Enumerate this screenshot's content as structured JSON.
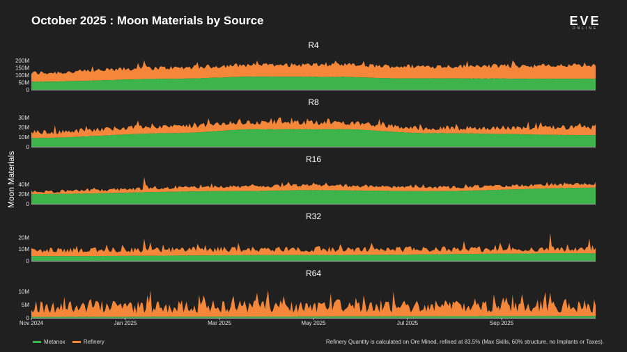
{
  "title": "October 2025 : Moon Materials by Source",
  "logo": {
    "main": "EVE",
    "sub": "ONLINE"
  },
  "colors": {
    "background": "#202020",
    "metanox": "#3cb44b",
    "refinery": "#f5873a"
  },
  "footnote": "Refinery Quantity is calculated on Ore Mined, refined at 83.5% (Max Skills, 60% structure, no Implants or Taxes).",
  "legend": [
    {
      "label": "Metanox",
      "color": "#3cb44b"
    },
    {
      "label": "Refinery",
      "color": "#f5873a"
    }
  ],
  "chart_data": {
    "type": "area",
    "stacked": true,
    "ylabel": "Moon Materials",
    "x_range": [
      "2024-11-01",
      "2025-10-31"
    ],
    "x_ticks": [
      "Nov 2024",
      "Jan 2025",
      "Mar 2025",
      "May 2025",
      "Jul 2025",
      "Sep 2025"
    ],
    "series_names": [
      "Metanox",
      "Refinery"
    ],
    "legend_position": "bottom-left",
    "panels": [
      {
        "title": "R4",
        "ylim": [
          0,
          200000000
        ],
        "ytick_labels": [
          "200M",
          "150M",
          "100M",
          "50M",
          "0"
        ],
        "ytick_values": [
          200000000,
          150000000,
          100000000,
          50000000,
          0
        ],
        "metanox_keyframes": [
          [
            0,
            55000000
          ],
          [
            0.25,
            75000000
          ],
          [
            0.4,
            90000000
          ],
          [
            0.55,
            88000000
          ],
          [
            0.65,
            78000000
          ],
          [
            1.0,
            75000000
          ]
        ],
        "total_keyframes": [
          [
            0,
            115000000
          ],
          [
            0.25,
            150000000
          ],
          [
            0.4,
            170000000
          ],
          [
            0.55,
            170000000
          ],
          [
            0.65,
            160000000
          ],
          [
            1.0,
            165000000
          ]
        ],
        "noise": 15000000,
        "spikes": [
          [
            0.2,
            210000000
          ],
          [
            0.96,
            180000000
          ]
        ]
      },
      {
        "title": "R8",
        "ylim": [
          0,
          30000000
        ],
        "ytick_labels": [
          "30M",
          "20M",
          "10M",
          "0"
        ],
        "ytick_values": [
          30000000,
          20000000,
          10000000,
          0
        ],
        "metanox_keyframes": [
          [
            0,
            9000000
          ],
          [
            0.25,
            14000000
          ],
          [
            0.4,
            18000000
          ],
          [
            0.55,
            18000000
          ],
          [
            0.7,
            14000000
          ],
          [
            1.0,
            12000000
          ]
        ],
        "total_keyframes": [
          [
            0,
            15000000
          ],
          [
            0.25,
            21000000
          ],
          [
            0.4,
            25000000
          ],
          [
            0.55,
            25000000
          ],
          [
            0.7,
            19000000
          ],
          [
            1.0,
            20000000
          ]
        ],
        "noise": 2500000,
        "spikes": [
          [
            0.37,
            29000000
          ],
          [
            0.88,
            26000000
          ]
        ]
      },
      {
        "title": "R16",
        "ylim": [
          0,
          60000000
        ],
        "ytick_labels": [
          "40M",
          "20M",
          "0"
        ],
        "ytick_values": [
          40000000,
          20000000,
          0
        ],
        "metanox_keyframes": [
          [
            0,
            20000000
          ],
          [
            0.35,
            26000000
          ],
          [
            0.5,
            28000000
          ],
          [
            0.7,
            26000000
          ],
          [
            1.0,
            33000000
          ]
        ],
        "total_keyframes": [
          [
            0,
            25000000
          ],
          [
            0.35,
            35000000
          ],
          [
            0.5,
            38000000
          ],
          [
            0.7,
            34000000
          ],
          [
            1.0,
            40000000
          ]
        ],
        "noise": 3000000,
        "spikes": [
          [
            0.2,
            55000000
          ],
          [
            0.98,
            43000000
          ]
        ]
      },
      {
        "title": "R32",
        "ylim": [
          0,
          25000000
        ],
        "ytick_labels": [
          "20M",
          "10M",
          "0"
        ],
        "ytick_values": [
          20000000,
          10000000,
          0
        ],
        "metanox_keyframes": [
          [
            0,
            4000000
          ],
          [
            0.5,
            5000000
          ],
          [
            1.0,
            6500000
          ]
        ],
        "total_keyframes": [
          [
            0,
            9000000
          ],
          [
            0.5,
            10000000
          ],
          [
            1.0,
            10000000
          ]
        ],
        "noise": 2500000,
        "spikes": [
          [
            0.2,
            19000000
          ],
          [
            0.92,
            24000000
          ],
          [
            0.99,
            19000000
          ]
        ]
      },
      {
        "title": "R64",
        "ylim": [
          0,
          11000000
        ],
        "ytick_labels": [
          "10M",
          "5M",
          "0"
        ],
        "ytick_values": [
          10000000,
          5000000,
          0
        ],
        "metanox_keyframes": [
          [
            0,
            400000
          ],
          [
            1.0,
            700000
          ]
        ],
        "total_keyframes": [
          [
            0,
            4000000
          ],
          [
            0.5,
            4500000
          ],
          [
            1.0,
            4500000
          ]
        ],
        "noise": 2500000,
        "spikes": [
          [
            0.4,
            9500000
          ],
          [
            0.92,
            9500000
          ]
        ]
      }
    ]
  }
}
